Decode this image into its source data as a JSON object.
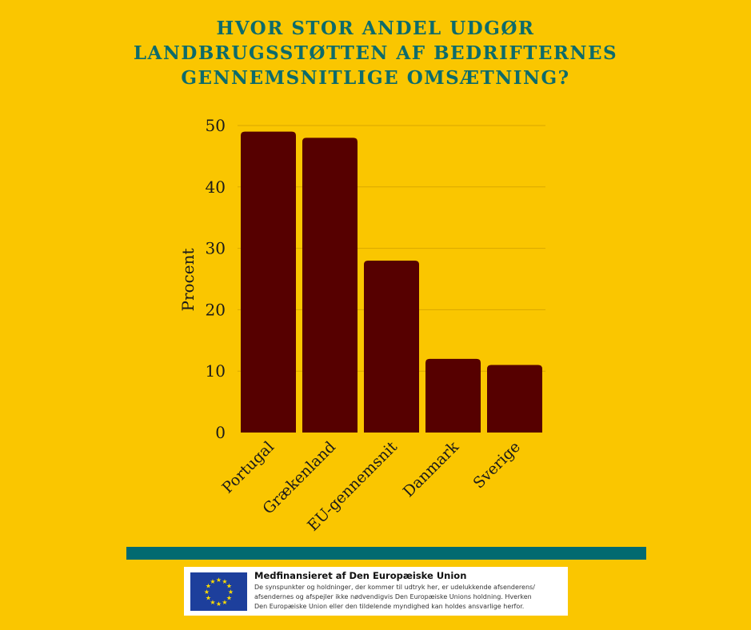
{
  "title_lines": [
    "HVOR STOR ANDEL UDGØR",
    "LANDBRUGSSTØTTEN AF BEDRIFTERNES",
    "GENNEMSNITLIGE OMSÆTNING?"
  ],
  "chart_data": {
    "type": "bar",
    "title": "HVOR STOR ANDEL UDGØR LANDBRUGSSTØTTEN AF BEDRIFTERNES GENNEMSNITLIGE OMSÆTNING?",
    "categories": [
      "Portugal",
      "Grækenland",
      "EU-gennemsnit",
      "Danmark",
      "Sverige"
    ],
    "values": [
      49,
      48,
      28,
      12,
      11
    ],
    "xlabel": "",
    "ylabel": "Procent",
    "ylim": [
      0,
      50
    ],
    "yticks": [
      0,
      10,
      20,
      30,
      40,
      50
    ],
    "grid": true,
    "colors": {
      "bar": "#560000",
      "background": "#fac600",
      "title": "#0d6b6b",
      "grid": "#d9a800"
    }
  },
  "footer": {
    "eu_heading": "Medfinansieret af Den Europæiske Union",
    "eu_disclaimer_lines": [
      "De synspunkter og holdninger, der kommer til udtryk her, er udelukkende afsenderens/",
      "afsendernes og afspejler ikke nødvendigvis Den Europæiske Unions holdning. Hverken",
      "Den Europæiske Union eller den tildelende myndighed kan holdes ansvarlige herfor."
    ],
    "logo": "eu-flag-icon"
  }
}
